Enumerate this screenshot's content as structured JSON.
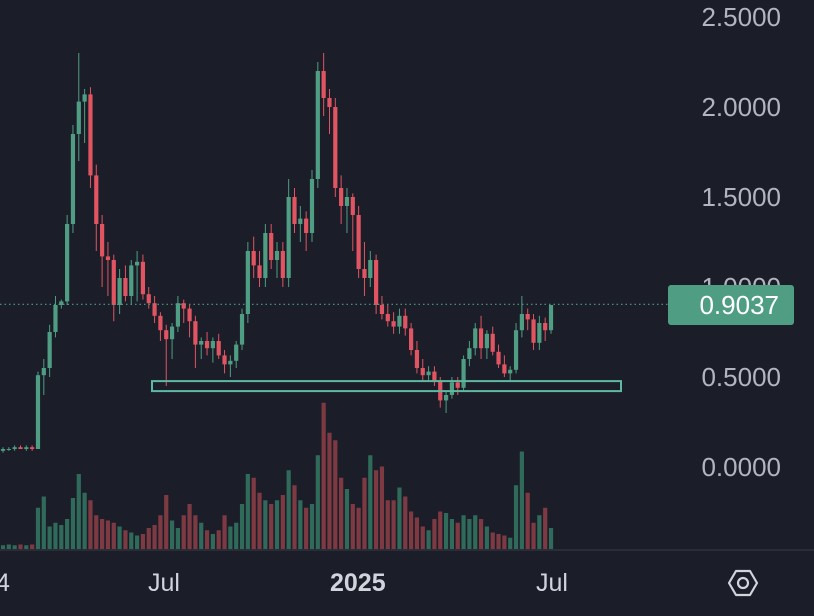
{
  "colors": {
    "background": "#1b1d28",
    "up": "#4f9e84",
    "down": "#e05561",
    "volume_up": "#2f6a5a",
    "volume_down": "#7e3a42",
    "axis_text": "#b2b5be",
    "price_line": "#4f9e84",
    "support_box": "#5fb8a0"
  },
  "y_axis": {
    "ticks": [
      "2.5000",
      "2.0000",
      "1.5000",
      "1.0000",
      "0.5000",
      "0.0000"
    ]
  },
  "x_axis": {
    "ticks": [
      "4",
      "Jul",
      "2025",
      "Jul"
    ]
  },
  "last_price": {
    "label": "0.9037",
    "value": 0.9037
  },
  "settings_icon": "settings-hexagon-icon",
  "chart_data": {
    "type": "candlestick",
    "interval": "weekly",
    "ylim": [
      -0.45,
      2.55
    ],
    "grid": false,
    "start": "2024-01",
    "support_zone": {
      "low": 0.43,
      "high": 0.48,
      "from_index": 28,
      "to_index": 108
    },
    "ohlc": [
      [
        0.09,
        0.11,
        0.08,
        0.1
      ],
      [
        0.1,
        0.11,
        0.09,
        0.1
      ],
      [
        0.1,
        0.12,
        0.09,
        0.11
      ],
      [
        0.11,
        0.12,
        0.1,
        0.1
      ],
      [
        0.1,
        0.12,
        0.09,
        0.11
      ],
      [
        0.11,
        0.12,
        0.09,
        0.1
      ],
      [
        0.1,
        0.53,
        0.1,
        0.51
      ],
      [
        0.51,
        0.6,
        0.4,
        0.55
      ],
      [
        0.55,
        0.79,
        0.5,
        0.75
      ],
      [
        0.75,
        0.95,
        0.72,
        0.9
      ],
      [
        0.9,
        0.93,
        0.88,
        0.92
      ],
      [
        0.92,
        1.4,
        0.9,
        1.35
      ],
      [
        1.35,
        1.9,
        1.3,
        1.85
      ],
      [
        1.85,
        2.3,
        1.7,
        2.03
      ],
      [
        2.03,
        2.1,
        1.8,
        2.07
      ],
      [
        2.07,
        2.11,
        1.55,
        1.62
      ],
      [
        1.62,
        1.68,
        1.2,
        1.35
      ],
      [
        1.35,
        1.4,
        1.0,
        1.17
      ],
      [
        1.17,
        1.25,
        0.95,
        1.15
      ],
      [
        1.15,
        1.18,
        0.81,
        0.9
      ],
      [
        0.9,
        1.1,
        0.85,
        1.05
      ],
      [
        1.05,
        1.12,
        0.92,
        0.95
      ],
      [
        0.95,
        1.15,
        0.9,
        1.12
      ],
      [
        1.12,
        1.2,
        0.92,
        1.14
      ],
      [
        1.14,
        1.18,
        0.93,
        0.96
      ],
      [
        0.96,
        1.0,
        0.88,
        0.91
      ],
      [
        0.91,
        0.95,
        0.8,
        0.84
      ],
      [
        0.84,
        0.86,
        0.7,
        0.76
      ],
      [
        0.76,
        0.79,
        0.45,
        0.71
      ],
      [
        0.71,
        0.8,
        0.6,
        0.78
      ],
      [
        0.78,
        0.95,
        0.75,
        0.91
      ],
      [
        0.91,
        0.93,
        0.8,
        0.88
      ],
      [
        0.88,
        0.9,
        0.72,
        0.81
      ],
      [
        0.81,
        0.84,
        0.55,
        0.68
      ],
      [
        0.68,
        0.72,
        0.6,
        0.7
      ],
      [
        0.7,
        0.75,
        0.62,
        0.66
      ],
      [
        0.66,
        0.72,
        0.58,
        0.7
      ],
      [
        0.7,
        0.74,
        0.6,
        0.62
      ],
      [
        0.62,
        0.65,
        0.52,
        0.57
      ],
      [
        0.57,
        0.62,
        0.5,
        0.59
      ],
      [
        0.59,
        0.7,
        0.55,
        0.68
      ],
      [
        0.68,
        0.88,
        0.65,
        0.85
      ],
      [
        0.85,
        1.25,
        0.8,
        1.2
      ],
      [
        1.2,
        1.28,
        1.05,
        1.12
      ],
      [
        1.12,
        1.2,
        1.0,
        1.05
      ],
      [
        1.05,
        1.35,
        1.0,
        1.3
      ],
      [
        1.3,
        1.35,
        1.1,
        1.15
      ],
      [
        1.15,
        1.25,
        1.05,
        1.2
      ],
      [
        1.2,
        1.25,
        1.0,
        1.05
      ],
      [
        1.05,
        1.6,
        1.0,
        1.5
      ],
      [
        1.5,
        1.55,
        1.3,
        1.35
      ],
      [
        1.35,
        1.45,
        1.25,
        1.38
      ],
      [
        1.38,
        1.42,
        1.2,
        1.3
      ],
      [
        1.3,
        1.65,
        1.25,
        1.6
      ],
      [
        1.6,
        2.25,
        1.55,
        2.2
      ],
      [
        2.2,
        2.3,
        1.95,
        2.05
      ],
      [
        2.05,
        2.1,
        1.85,
        2.0
      ],
      [
        2.0,
        2.05,
        1.5,
        1.55
      ],
      [
        1.55,
        1.62,
        1.35,
        1.45
      ],
      [
        1.45,
        1.55,
        1.3,
        1.5
      ],
      [
        1.5,
        1.52,
        1.2,
        1.4
      ],
      [
        1.4,
        1.45,
        1.05,
        1.1
      ],
      [
        1.1,
        1.25,
        0.95,
        1.05
      ],
      [
        1.05,
        1.2,
        1.0,
        1.15
      ],
      [
        1.15,
        1.18,
        0.85,
        0.9
      ],
      [
        0.9,
        0.95,
        0.82,
        0.85
      ],
      [
        0.85,
        0.9,
        0.78,
        0.81
      ],
      [
        0.81,
        0.86,
        0.74,
        0.78
      ],
      [
        0.78,
        0.88,
        0.74,
        0.84
      ],
      [
        0.84,
        0.88,
        0.73,
        0.77
      ],
      [
        0.77,
        0.8,
        0.62,
        0.65
      ],
      [
        0.65,
        0.7,
        0.52,
        0.55
      ],
      [
        0.55,
        0.6,
        0.48,
        0.51
      ],
      [
        0.51,
        0.56,
        0.48,
        0.53
      ],
      [
        0.53,
        0.56,
        0.45,
        0.48
      ],
      [
        0.48,
        0.5,
        0.33,
        0.37
      ],
      [
        0.37,
        0.42,
        0.3,
        0.4
      ],
      [
        0.4,
        0.5,
        0.38,
        0.47
      ],
      [
        0.47,
        0.5,
        0.4,
        0.44
      ],
      [
        0.44,
        0.62,
        0.42,
        0.6
      ],
      [
        0.6,
        0.7,
        0.56,
        0.66
      ],
      [
        0.66,
        0.8,
        0.62,
        0.77
      ],
      [
        0.77,
        0.84,
        0.6,
        0.66
      ],
      [
        0.66,
        0.76,
        0.6,
        0.74
      ],
      [
        0.74,
        0.78,
        0.62,
        0.64
      ],
      [
        0.64,
        0.68,
        0.55,
        0.57
      ],
      [
        0.57,
        0.62,
        0.5,
        0.52
      ],
      [
        0.52,
        0.56,
        0.48,
        0.54
      ],
      [
        0.54,
        0.8,
        0.52,
        0.76
      ],
      [
        0.76,
        0.95,
        0.72,
        0.85
      ],
      [
        0.85,
        0.88,
        0.76,
        0.82
      ],
      [
        0.82,
        0.85,
        0.65,
        0.69
      ],
      [
        0.69,
        0.84,
        0.65,
        0.8
      ],
      [
        0.8,
        0.83,
        0.7,
        0.76
      ],
      [
        0.76,
        0.9,
        0.74,
        0.9
      ]
    ],
    "volume": [
      0.05,
      0.06,
      0.05,
      0.06,
      0.05,
      0.06,
      0.55,
      0.7,
      0.3,
      0.35,
      0.32,
      0.4,
      0.68,
      1.0,
      0.75,
      0.65,
      0.45,
      0.4,
      0.38,
      0.35,
      0.3,
      0.25,
      0.22,
      0.18,
      0.2,
      0.28,
      0.32,
      0.45,
      0.72,
      0.38,
      0.28,
      0.45,
      0.6,
      0.45,
      0.35,
      0.25,
      0.2,
      0.25,
      0.45,
      0.3,
      0.35,
      0.6,
      1.0,
      0.95,
      0.75,
      0.65,
      0.6,
      0.65,
      0.72,
      1.05,
      0.85,
      0.65,
      0.55,
      0.6,
      1.25,
      1.95,
      1.55,
      1.45,
      0.95,
      0.8,
      0.6,
      0.55,
      0.95,
      1.25,
      1.05,
      1.1,
      0.65,
      0.65,
      0.82,
      0.7,
      0.5,
      0.42,
      0.3,
      0.25,
      0.4,
      0.5,
      0.48,
      0.4,
      0.35,
      0.45,
      0.4,
      0.45,
      0.4,
      0.3,
      0.22,
      0.2,
      0.18,
      0.15,
      0.85,
      1.3,
      0.75,
      0.35,
      0.45,
      0.55,
      0.28
    ]
  }
}
